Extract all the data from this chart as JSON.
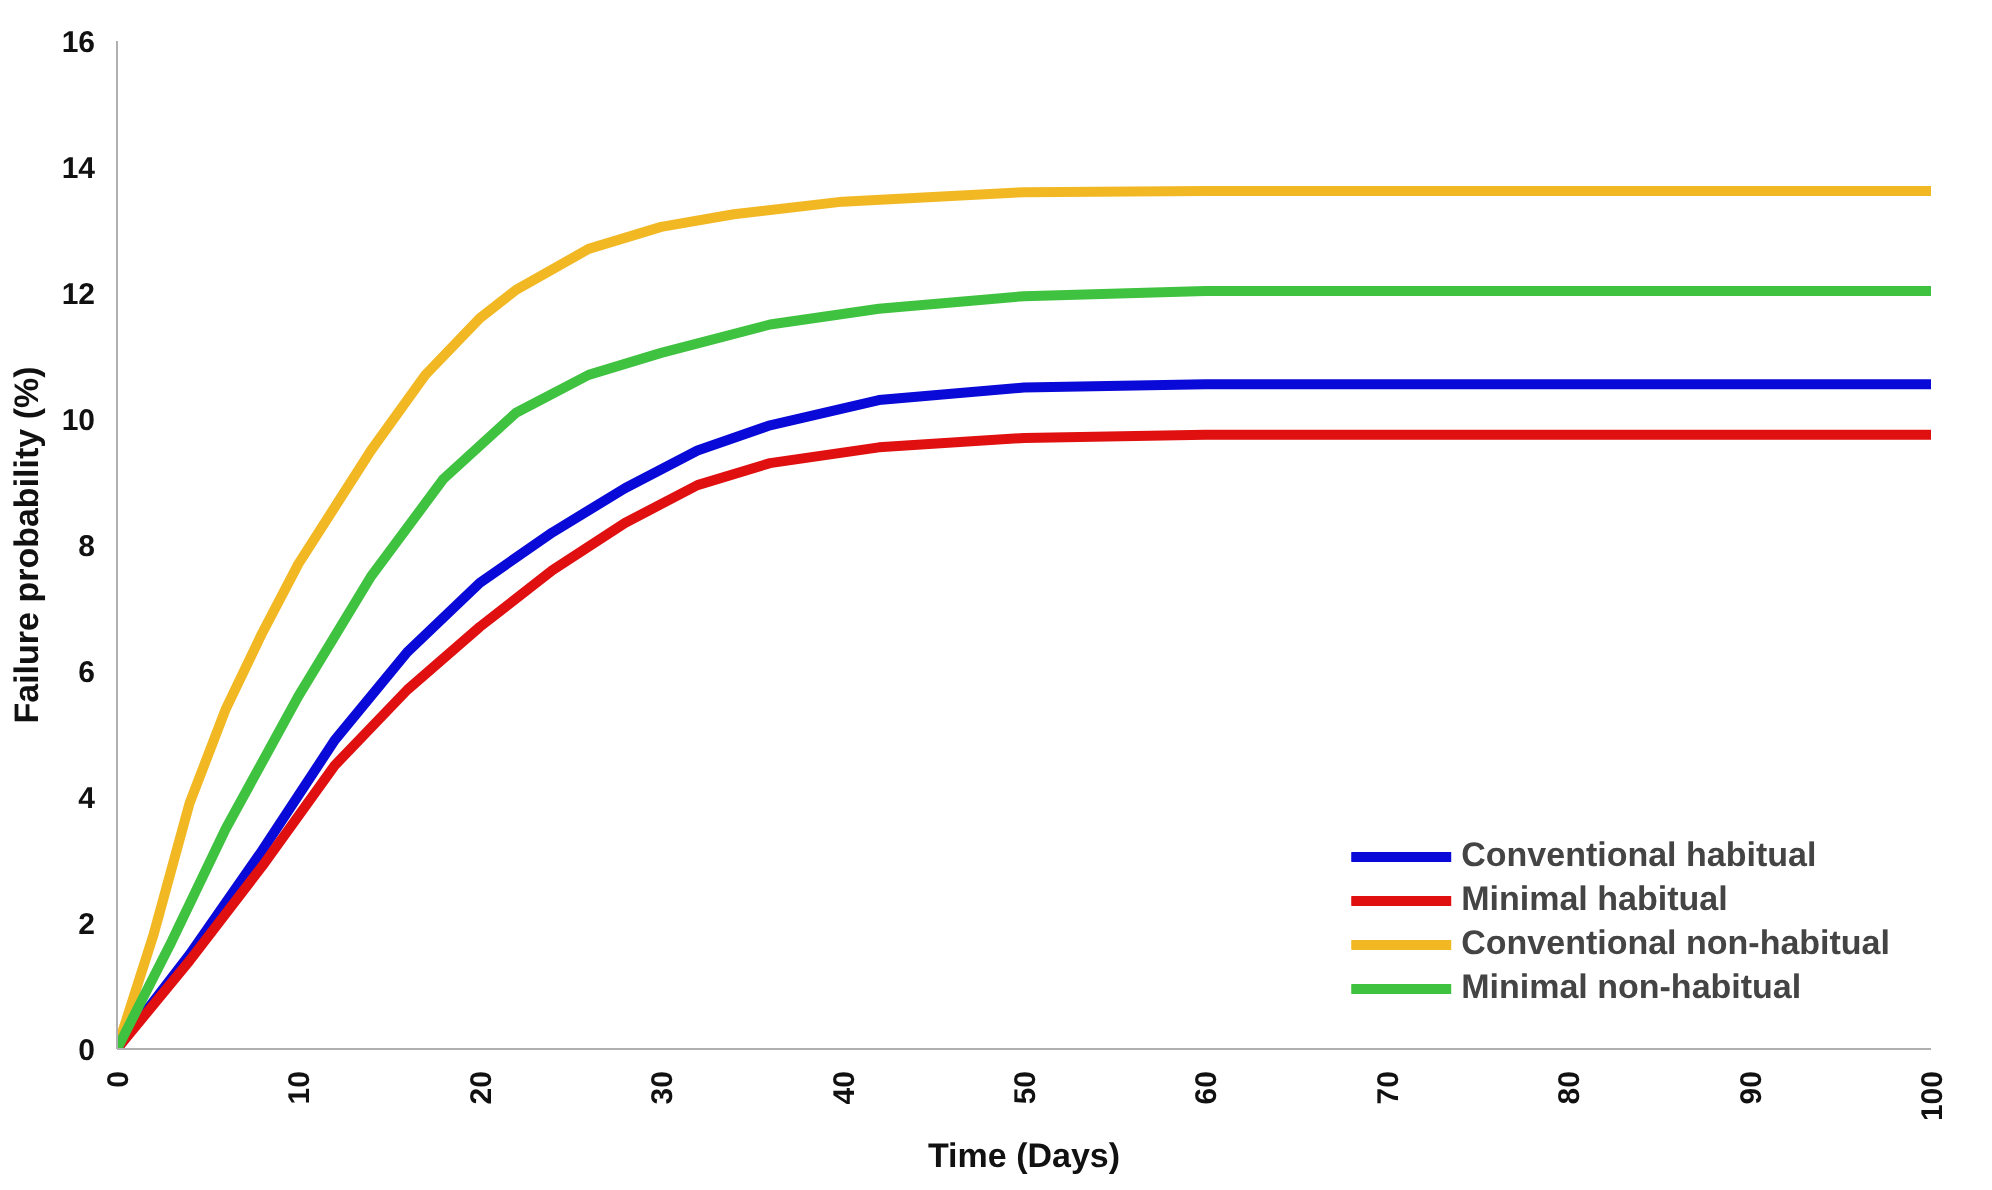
{
  "chart_data": {
    "type": "line",
    "xlabel": "Time (Days)",
    "ylabel": "Failure probability (%)",
    "xlim": [
      0,
      100
    ],
    "ylim": [
      0,
      16
    ],
    "xticks": [
      0,
      10,
      20,
      30,
      40,
      50,
      60,
      70,
      80,
      90,
      100
    ],
    "yticks": [
      0,
      2,
      4,
      6,
      8,
      10,
      12,
      14,
      16
    ],
    "grid": false,
    "legend": "bottom right",
    "line_style": "solid",
    "series": [
      {
        "name": "Conventional habitual",
        "color": "#0a0ad8",
        "x": [
          0,
          4,
          8,
          12,
          16,
          20,
          24,
          28,
          32,
          36,
          42,
          50,
          60,
          100
        ],
        "values": [
          0,
          1.5,
          3.15,
          4.9,
          6.3,
          7.4,
          8.2,
          8.9,
          9.5,
          9.9,
          10.3,
          10.5,
          10.55,
          10.55
        ]
      },
      {
        "name": "Minimal habitual",
        "color": "#e01010",
        "x": [
          0,
          4,
          8,
          12,
          16,
          20,
          24,
          28,
          32,
          36,
          42,
          50,
          60,
          100
        ],
        "values": [
          0,
          1.4,
          2.9,
          4.5,
          5.7,
          6.7,
          7.6,
          8.35,
          8.95,
          9.3,
          9.55,
          9.7,
          9.75,
          9.75
        ]
      },
      {
        "name": "Conventional non-habitual",
        "color": "#f2b824",
        "x": [
          0,
          2,
          4,
          6,
          8,
          10,
          12,
          14,
          17,
          20,
          22,
          26,
          30,
          34,
          40,
          50,
          60,
          100
        ],
        "values": [
          0,
          1.8,
          3.9,
          5.4,
          6.6,
          7.7,
          8.6,
          9.5,
          10.7,
          11.6,
          12.05,
          12.7,
          13.05,
          13.25,
          13.45,
          13.6,
          13.62,
          13.62
        ]
      },
      {
        "name": "Minimal non-habitual",
        "color": "#3fc23f",
        "x": [
          0,
          3,
          6,
          10,
          14,
          18,
          22,
          26,
          30,
          36,
          42,
          50,
          60,
          100
        ],
        "values": [
          0,
          1.7,
          3.5,
          5.6,
          7.5,
          9.05,
          10.1,
          10.7,
          11.05,
          11.5,
          11.75,
          11.95,
          12.03,
          12.03
        ]
      }
    ]
  }
}
